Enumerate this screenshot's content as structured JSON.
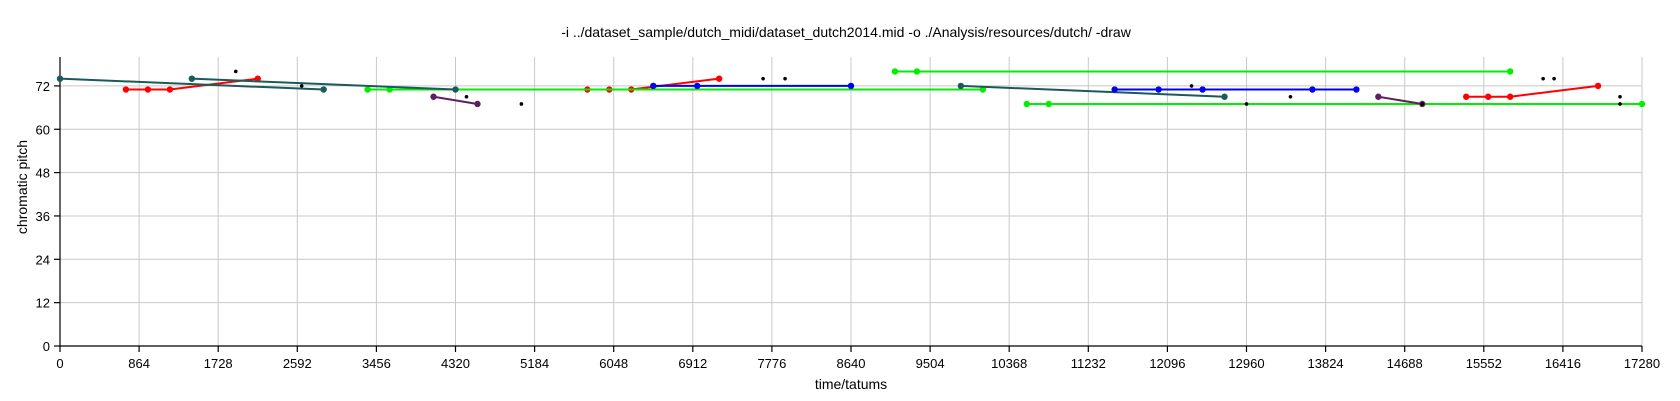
{
  "chart_data": {
    "type": "scatter",
    "title": "-i ../dataset_sample/dutch_midi/dataset_dutch2014.mid -o ./Analysis/resources/dutch/ -draw",
    "xlabel": "time/tatums",
    "ylabel": "chromatic pitch",
    "xlim": [
      0,
      17280
    ],
    "ylim": [
      0,
      80
    ],
    "grid": true,
    "xticks": [
      0,
      864,
      1728,
      2592,
      3456,
      4320,
      5184,
      6048,
      6912,
      7776,
      8640,
      9504,
      10368,
      11232,
      12096,
      12960,
      13824,
      14688,
      15552,
      16416,
      17280
    ],
    "yticks": [
      0,
      12,
      24,
      36,
      48,
      60,
      72
    ],
    "series": [
      {
        "color": "#ff0000",
        "points": [
          [
            720,
            71
          ],
          [
            960,
            71
          ],
          [
            1200,
            71
          ],
          [
            2160,
            74
          ]
        ]
      },
      {
        "color": "#ff0000",
        "points": [
          [
            5760,
            71
          ],
          [
            6000,
            71
          ],
          [
            6240,
            71
          ],
          [
            7200,
            74
          ]
        ]
      },
      {
        "color": "#ff0000",
        "points": [
          [
            15360,
            69
          ],
          [
            15600,
            69
          ],
          [
            15840,
            69
          ],
          [
            16800,
            72
          ]
        ]
      },
      {
        "color": "#00ee00",
        "points": [
          [
            3360,
            71
          ],
          [
            3600,
            71
          ],
          [
            10080,
            71
          ]
        ]
      },
      {
        "color": "#00ee00",
        "points": [
          [
            9120,
            76
          ],
          [
            9360,
            76
          ],
          [
            15840,
            76
          ]
        ]
      },
      {
        "color": "#00ee00",
        "points": [
          [
            10560,
            67
          ],
          [
            10800,
            67
          ],
          [
            17280,
            67
          ]
        ]
      },
      {
        "color": "#1a5a5a",
        "points": [
          [
            0,
            74
          ],
          [
            2880,
            71
          ]
        ]
      },
      {
        "color": "#1a5a5a",
        "points": [
          [
            1440,
            74
          ],
          [
            4320,
            71
          ]
        ]
      },
      {
        "color": "#1a5a5a",
        "points": [
          [
            9840,
            72
          ],
          [
            12720,
            69
          ]
        ]
      },
      {
        "color": "#0000ee",
        "points": [
          [
            6480,
            72
          ],
          [
            6960,
            72
          ],
          [
            8640,
            72
          ]
        ]
      },
      {
        "color": "#0000ee",
        "points": [
          [
            11520,
            71
          ],
          [
            12000,
            71
          ],
          [
            12480,
            71
          ],
          [
            13680,
            71
          ],
          [
            14160,
            71
          ]
        ]
      },
      {
        "color": "#602060",
        "points": [
          [
            4080,
            69
          ],
          [
            4560,
            67
          ]
        ]
      },
      {
        "color": "#602060",
        "points": [
          [
            14400,
            69
          ],
          [
            14880,
            67
          ]
        ]
      }
    ],
    "points": [
      [
        1920,
        76
      ],
      [
        2640,
        72
      ],
      [
        4440,
        69
      ],
      [
        5040,
        67
      ],
      [
        7680,
        74
      ],
      [
        7920,
        74
      ],
      [
        12360,
        72
      ],
      [
        12960,
        67
      ],
      [
        13440,
        69
      ],
      [
        14880,
        67
      ],
      [
        16200,
        74
      ],
      [
        16320,
        74
      ],
      [
        17040,
        69
      ],
      [
        17040,
        67
      ]
    ]
  }
}
